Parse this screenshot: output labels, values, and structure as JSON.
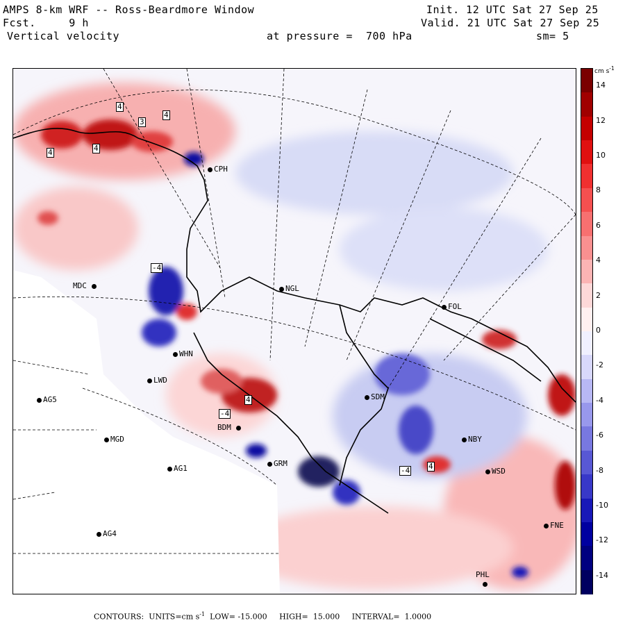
{
  "header": {
    "model_title": "AMPS 8-km WRF -- Ross-Beardmore Window",
    "init_line": "Init. 12 UTC Sat 27 Sep 25",
    "fcst_line": "Fcst.     9 h",
    "valid_line": "Valid. 21 UTC Sat 27 Sep 25",
    "field_name": "Vertical velocity",
    "pressure_line": "at pressure =  700 hPa",
    "smoothing": "sm= 5"
  },
  "stations": [
    {
      "id": "CPH",
      "label": "CPH"
    },
    {
      "id": "MDC",
      "label": "MDC"
    },
    {
      "id": "NGL",
      "label": "NGL"
    },
    {
      "id": "FOL",
      "label": "FOL"
    },
    {
      "id": "WHN",
      "label": "WHN"
    },
    {
      "id": "LWD",
      "label": "LWD"
    },
    {
      "id": "SDM",
      "label": "SDM"
    },
    {
      "id": "AG5",
      "label": "AG5"
    },
    {
      "id": "BDM",
      "label": "BDM"
    },
    {
      "id": "MGD",
      "label": "MGD"
    },
    {
      "id": "NBY",
      "label": "NBY"
    },
    {
      "id": "GRM",
      "label": "GRM"
    },
    {
      "id": "AG1",
      "label": "AG1"
    },
    {
      "id": "WSD",
      "label": "WSD"
    },
    {
      "id": "FNE",
      "label": "FNE"
    },
    {
      "id": "AG4",
      "label": "AG4"
    },
    {
      "id": "PHL",
      "label": "PHL"
    }
  ],
  "contour_labels": [
    "4",
    "4",
    "3",
    "4",
    "4",
    "-4",
    "-4",
    "4",
    "-4",
    "4"
  ],
  "colorbar": {
    "units": "cm s",
    "units_exp": "-1",
    "ticks": [
      "14",
      "12",
      "10",
      "8",
      "6",
      "4",
      "2",
      "0",
      "-2",
      "-4",
      "-6",
      "-8",
      "-10",
      "-12",
      "-14"
    ],
    "low_value": -15,
    "high_value": 15,
    "colors_positive": [
      "#7a0000",
      "#a00000",
      "#c40000",
      "#e01010",
      "#f03030",
      "#f55050",
      "#f77070",
      "#f99090",
      "#fbb4b4",
      "#fdd8d8",
      "#fff0f0"
    ],
    "colors_negative": [
      "#f0f0ff",
      "#d8d8fb",
      "#b8b8f4",
      "#9898ec",
      "#7878e0",
      "#5858d4",
      "#3838c8",
      "#1818b8",
      "#0000a0",
      "#000080",
      "#000060"
    ]
  },
  "footer": {
    "contours_label": "CONTOURS:",
    "units_label": "UNITS=cm s",
    "units_exp": "-1",
    "low_label": "LOW=",
    "low": "-15.000",
    "high_label": "HIGH=",
    "high": "15.000",
    "interval_label": "INTERVAL=",
    "interval": "1.0000"
  }
}
